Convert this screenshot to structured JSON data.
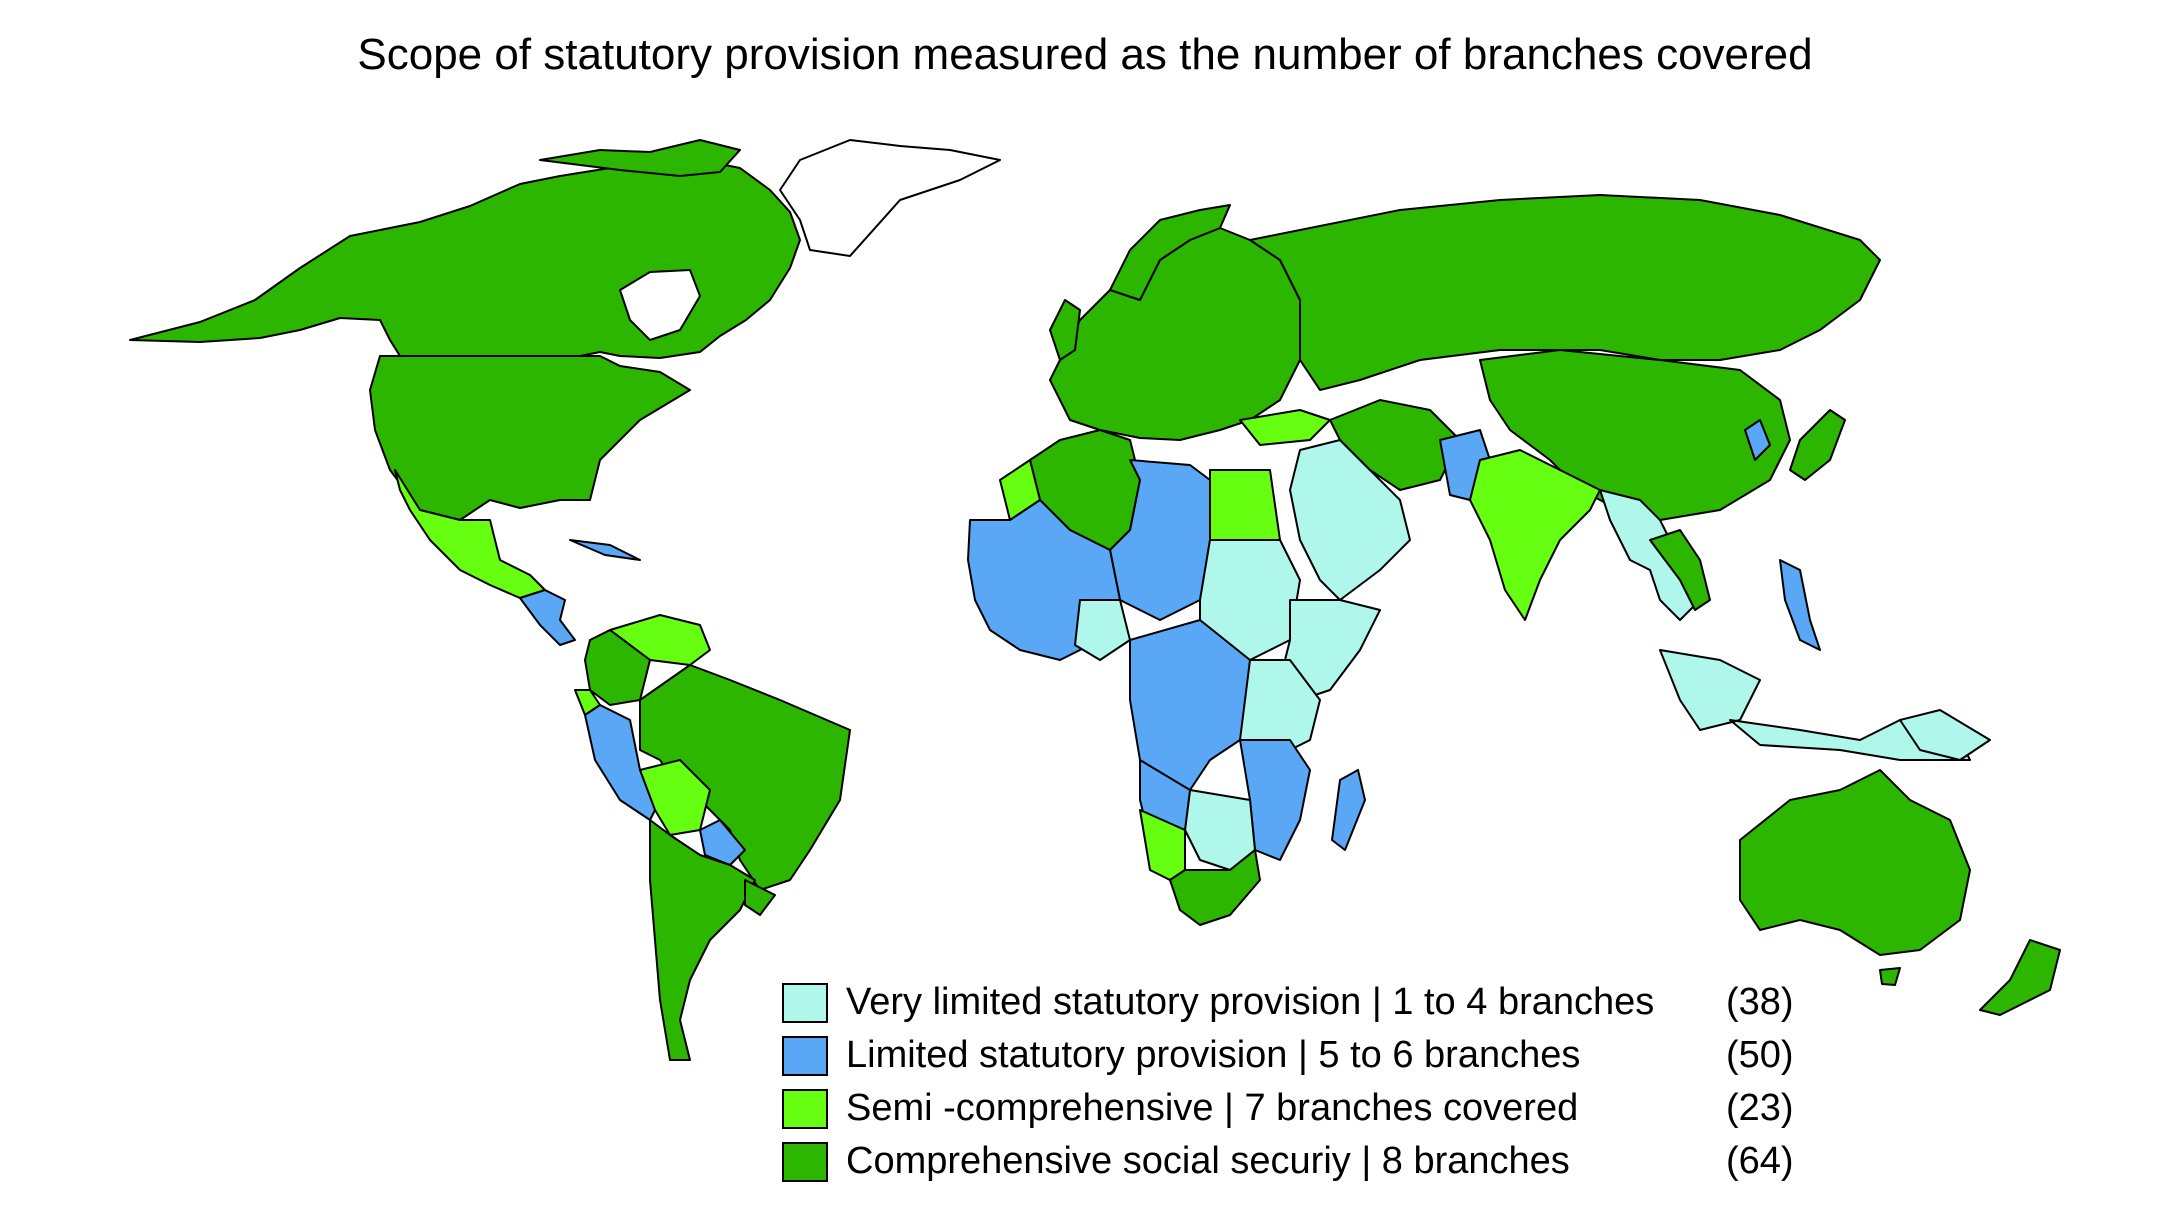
{
  "title": "Scope of statutory provision measured as the number of branches covered",
  "colors": {
    "very_limited": "#aef7ea",
    "limited": "#5aa8f5",
    "semi": "#66ff11",
    "comprehensive": "#2db600",
    "no_data": "#ffffff",
    "ocean": "#ffffff",
    "border": "#000000"
  },
  "legend": [
    {
      "key": "very_limited",
      "label": "Very limited statutory provision | 1 to 4 branches",
      "count": "(38)"
    },
    {
      "key": "limited",
      "label": "Limited statutory provision | 5 to 6 branches",
      "count": "(50)"
    },
    {
      "key": "semi",
      "label": "Semi -comprehensive | 7 branches covered",
      "count": "(23)"
    },
    {
      "key": "comprehensive",
      "label": "Comprehensive social securiy | 8 branches",
      "count": "(64)"
    }
  ]
}
